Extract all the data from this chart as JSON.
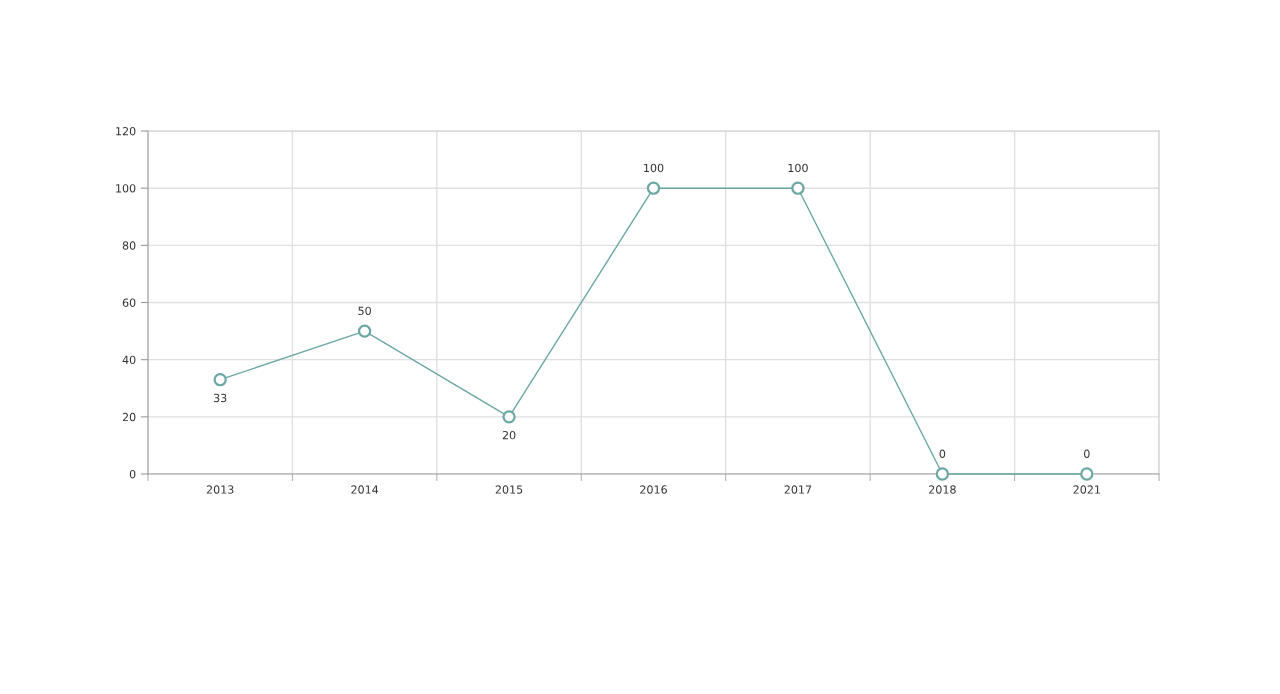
{
  "chart_data": {
    "type": "line",
    "categories": [
      "2013",
      "2014",
      "2015",
      "2016",
      "2017",
      "2018",
      "2021"
    ],
    "series": [
      {
        "color": "#6aa7a3",
        "values": [
          33,
          50,
          20,
          100,
          100,
          0,
          0
        ]
      }
    ],
    "ylim": [
      0,
      120
    ],
    "yticks": [
      0,
      20,
      40,
      60,
      80,
      100,
      120
    ],
    "grid": true,
    "marker": "circle",
    "line_style": "solid",
    "data_labels": true,
    "legend": false
  }
}
